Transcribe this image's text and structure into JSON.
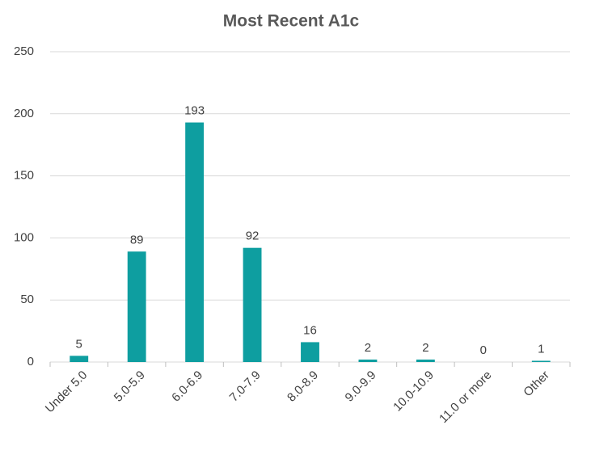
{
  "chart_data": {
    "type": "bar",
    "title": "Most Recent A1c",
    "categories": [
      "Under 5.0",
      "5.0-5.9",
      "6.0-6.9",
      "7.0-7.9",
      "8.0-8.9",
      "9.0-9.9",
      "10.0-10.9",
      "11.0 or more",
      "Other"
    ],
    "values": [
      5,
      89,
      193,
      92,
      16,
      2,
      2,
      0,
      1
    ],
    "color": "#0e9ea0",
    "ylim": [
      0,
      250
    ],
    "yticks": [
      0,
      50,
      100,
      150,
      200,
      250
    ],
    "grid": true
  }
}
